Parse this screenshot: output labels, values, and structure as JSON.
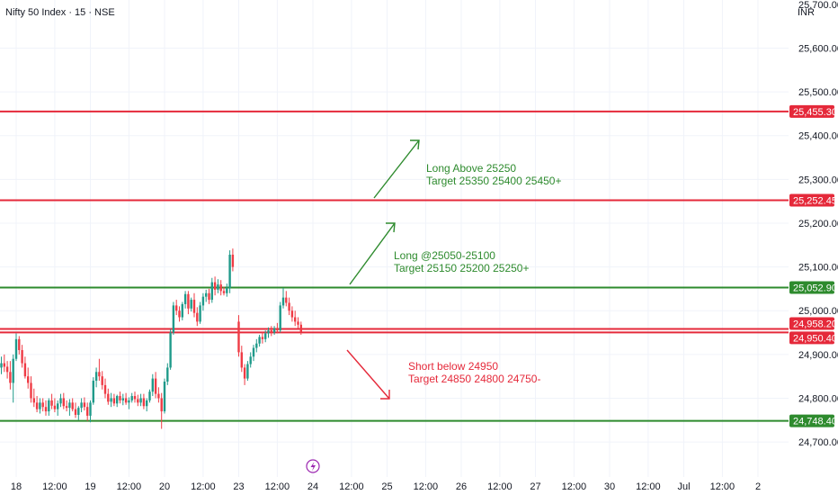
{
  "header": {
    "title": "Nifty 50 Index · 15 · NSE",
    "currency": "INR"
  },
  "colors": {
    "up": "#1f9a8a",
    "down": "#ef3b45",
    "resistance": "#e5293a",
    "support": "#2e8b2e",
    "grid": "#f0f3fa",
    "event_icon": "#9c27b0"
  },
  "chart_data": {
    "type": "candlestick",
    "ylim": [
      24620,
      25710
    ],
    "y_ticks": [
      24700,
      24800,
      24900,
      25000,
      25100,
      25200,
      25300,
      25400,
      25500,
      25600
    ],
    "y_tick_labels": [
      "24,700.00",
      "24,800.00",
      "24,900.00",
      "25,000.00",
      "25,100.00",
      "25,200.00",
      "25,300.00",
      "25,400.00",
      "25,500.00",
      "25,600.00"
    ],
    "top_partial_label": "25,700.00",
    "x_labels": [
      {
        "label": "18",
        "slot": 0
      },
      {
        "label": "12:00",
        "slot": 13
      },
      {
        "label": "19",
        "slot": 25
      },
      {
        "label": "12:00",
        "slot": 38
      },
      {
        "label": "20",
        "slot": 50
      },
      {
        "label": "12:00",
        "slot": 63
      },
      {
        "label": "23",
        "slot": 75
      },
      {
        "label": "12:00",
        "slot": 88
      },
      {
        "label": "24",
        "slot": 100
      },
      {
        "label": "12:00",
        "slot": 113
      },
      {
        "label": "25",
        "slot": 125
      },
      {
        "label": "12:00",
        "slot": 138
      },
      {
        "label": "26",
        "slot": 150
      },
      {
        "label": "12:00",
        "slot": 163
      },
      {
        "label": "27",
        "slot": 175
      },
      {
        "label": "12:00",
        "slot": 188
      },
      {
        "label": "30",
        "slot": 200
      },
      {
        "label": "12:00",
        "slot": 213
      },
      {
        "label": "Jul",
        "slot": 225
      },
      {
        "label": "12:00",
        "slot": 238
      },
      {
        "label": "2",
        "slot": 250
      }
    ],
    "levels": [
      {
        "value": 25455.3,
        "label": "25,455.30",
        "kind": "resistance"
      },
      {
        "value": 25252.45,
        "label": "25,252.45",
        "kind": "resistance"
      },
      {
        "value": 25052.9,
        "label": "25,052.90",
        "kind": "support"
      },
      {
        "value": 24958.2,
        "label": "24,958.20",
        "kind": "resistance"
      },
      {
        "value": 24950.4,
        "label": "24,950.40",
        "kind": "resistance"
      },
      {
        "value": 24748.4,
        "label": "24,748.40",
        "kind": "support"
      }
    ],
    "annotations": [
      {
        "lines": [
          "Long Above 25250",
          "Target 25350 25400 25450+"
        ],
        "kind": "green"
      },
      {
        "lines": [
          "Long @25050-25100",
          "Target 25150 25200 25250+"
        ],
        "kind": "green"
      },
      {
        "lines": [
          "Short below 24950",
          "Target 24850 24800 24750-"
        ],
        "kind": "red"
      }
    ],
    "candles": [
      {
        "slot": -5,
        "o": 24870,
        "h": 24895,
        "l": 24855,
        "c": 24880
      },
      {
        "slot": -4,
        "o": 24880,
        "h": 24900,
        "l": 24860,
        "c": 24872
      },
      {
        "slot": -3,
        "o": 24872,
        "h": 24885,
        "l": 24845,
        "c": 24860
      },
      {
        "slot": -2,
        "o": 24860,
        "h": 24885,
        "l": 24820,
        "c": 24835
      },
      {
        "slot": -1,
        "o": 24835,
        "h": 24900,
        "l": 24790,
        "c": 24890
      },
      {
        "slot": 0,
        "o": 24890,
        "h": 24948,
        "l": 24885,
        "c": 24935
      },
      {
        "slot": 1,
        "o": 24935,
        "h": 24942,
        "l": 24900,
        "c": 24910
      },
      {
        "slot": 2,
        "o": 24910,
        "h": 24922,
        "l": 24870,
        "c": 24880
      },
      {
        "slot": 3,
        "o": 24880,
        "h": 24895,
        "l": 24845,
        "c": 24850
      },
      {
        "slot": 4,
        "o": 24850,
        "h": 24870,
        "l": 24822,
        "c": 24835
      },
      {
        "slot": 5,
        "o": 24835,
        "h": 24850,
        "l": 24790,
        "c": 24800
      },
      {
        "slot": 6,
        "o": 24800,
        "h": 24822,
        "l": 24780,
        "c": 24790
      },
      {
        "slot": 7,
        "o": 24790,
        "h": 24805,
        "l": 24768,
        "c": 24775
      },
      {
        "slot": 8,
        "o": 24775,
        "h": 24800,
        "l": 24765,
        "c": 24790
      },
      {
        "slot": 9,
        "o": 24790,
        "h": 24800,
        "l": 24770,
        "c": 24780
      },
      {
        "slot": 10,
        "o": 24780,
        "h": 24795,
        "l": 24760,
        "c": 24770
      },
      {
        "slot": 11,
        "o": 24770,
        "h": 24800,
        "l": 24760,
        "c": 24795
      },
      {
        "slot": 12,
        "o": 24795,
        "h": 24810,
        "l": 24775,
        "c": 24783
      },
      {
        "slot": 13,
        "o": 24783,
        "h": 24800,
        "l": 24768,
        "c": 24775
      },
      {
        "slot": 14,
        "o": 24775,
        "h": 24795,
        "l": 24760,
        "c": 24788
      },
      {
        "slot": 15,
        "o": 24788,
        "h": 24810,
        "l": 24780,
        "c": 24800
      },
      {
        "slot": 16,
        "o": 24800,
        "h": 24812,
        "l": 24775,
        "c": 24782
      },
      {
        "slot": 17,
        "o": 24782,
        "h": 24795,
        "l": 24770,
        "c": 24778
      },
      {
        "slot": 18,
        "o": 24778,
        "h": 24798,
        "l": 24760,
        "c": 24790
      },
      {
        "slot": 19,
        "o": 24790,
        "h": 24800,
        "l": 24770,
        "c": 24775
      },
      {
        "slot": 20,
        "o": 24775,
        "h": 24790,
        "l": 24755,
        "c": 24762
      },
      {
        "slot": 21,
        "o": 24762,
        "h": 24782,
        "l": 24750,
        "c": 24778
      },
      {
        "slot": 22,
        "o": 24778,
        "h": 24800,
        "l": 24768,
        "c": 24790
      },
      {
        "slot": 23,
        "o": 24790,
        "h": 24802,
        "l": 24772,
        "c": 24780
      },
      {
        "slot": 24,
        "o": 24780,
        "h": 24790,
        "l": 24748,
        "c": 24760
      },
      {
        "slot": 25,
        "o": 24760,
        "h": 24795,
        "l": 24745,
        "c": 24790
      },
      {
        "slot": 26,
        "o": 24790,
        "h": 24848,
        "l": 24785,
        "c": 24840
      },
      {
        "slot": 27,
        "o": 24840,
        "h": 24870,
        "l": 24825,
        "c": 24860
      },
      {
        "slot": 28,
        "o": 24860,
        "h": 24890,
        "l": 24840,
        "c": 24850
      },
      {
        "slot": 29,
        "o": 24850,
        "h": 24862,
        "l": 24820,
        "c": 24830
      },
      {
        "slot": 30,
        "o": 24830,
        "h": 24845,
        "l": 24800,
        "c": 24810
      },
      {
        "slot": 31,
        "o": 24810,
        "h": 24822,
        "l": 24785,
        "c": 24792
      },
      {
        "slot": 32,
        "o": 24792,
        "h": 24812,
        "l": 24780,
        "c": 24800
      },
      {
        "slot": 33,
        "o": 24800,
        "h": 24810,
        "l": 24782,
        "c": 24788
      },
      {
        "slot": 34,
        "o": 24788,
        "h": 24808,
        "l": 24780,
        "c": 24805
      },
      {
        "slot": 35,
        "o": 24805,
        "h": 24815,
        "l": 24788,
        "c": 24795
      },
      {
        "slot": 36,
        "o": 24795,
        "h": 24810,
        "l": 24784,
        "c": 24800
      },
      {
        "slot": 37,
        "o": 24800,
        "h": 24812,
        "l": 24785,
        "c": 24790
      },
      {
        "slot": 38,
        "o": 24790,
        "h": 24802,
        "l": 24775,
        "c": 24795
      },
      {
        "slot": 39,
        "o": 24795,
        "h": 24812,
        "l": 24790,
        "c": 24805
      },
      {
        "slot": 40,
        "o": 24805,
        "h": 24815,
        "l": 24790,
        "c": 24798
      },
      {
        "slot": 41,
        "o": 24798,
        "h": 24808,
        "l": 24782,
        "c": 24790
      },
      {
        "slot": 42,
        "o": 24790,
        "h": 24810,
        "l": 24782,
        "c": 24800
      },
      {
        "slot": 43,
        "o": 24800,
        "h": 24810,
        "l": 24775,
        "c": 24782
      },
      {
        "slot": 44,
        "o": 24782,
        "h": 24800,
        "l": 24770,
        "c": 24795
      },
      {
        "slot": 45,
        "o": 24795,
        "h": 24820,
        "l": 24790,
        "c": 24815
      },
      {
        "slot": 46,
        "o": 24815,
        "h": 24855,
        "l": 24805,
        "c": 24845
      },
      {
        "slot": 47,
        "o": 24845,
        "h": 24860,
        "l": 24800,
        "c": 24810
      },
      {
        "slot": 48,
        "o": 24810,
        "h": 24825,
        "l": 24790,
        "c": 24800
      },
      {
        "slot": 49,
        "o": 24800,
        "h": 24812,
        "l": 24730,
        "c": 24770
      },
      {
        "slot": 50,
        "o": 24770,
        "h": 24845,
        "l": 24765,
        "c": 24838
      },
      {
        "slot": 51,
        "o": 24838,
        "h": 24880,
        "l": 24830,
        "c": 24870
      },
      {
        "slot": 52,
        "o": 24870,
        "h": 24958,
        "l": 24865,
        "c": 24950
      },
      {
        "slot": 53,
        "o": 24950,
        "h": 25020,
        "l": 24945,
        "c": 25012
      },
      {
        "slot": 54,
        "o": 25012,
        "h": 25025,
        "l": 24990,
        "c": 25000
      },
      {
        "slot": 55,
        "o": 25000,
        "h": 25010,
        "l": 24975,
        "c": 24985
      },
      {
        "slot": 56,
        "o": 24985,
        "h": 25020,
        "l": 24978,
        "c": 25015
      },
      {
        "slot": 57,
        "o": 25015,
        "h": 25045,
        "l": 25005,
        "c": 25038
      },
      {
        "slot": 58,
        "o": 25038,
        "h": 25045,
        "l": 24992,
        "c": 25005
      },
      {
        "slot": 59,
        "o": 25005,
        "h": 25030,
        "l": 24998,
        "c": 25025
      },
      {
        "slot": 60,
        "o": 25025,
        "h": 25040,
        "l": 24985,
        "c": 24995
      },
      {
        "slot": 61,
        "o": 24995,
        "h": 25008,
        "l": 24965,
        "c": 24975
      },
      {
        "slot": 62,
        "o": 24975,
        "h": 25020,
        "l": 24970,
        "c": 25012
      },
      {
        "slot": 63,
        "o": 25012,
        "h": 25040,
        "l": 25000,
        "c": 25032
      },
      {
        "slot": 64,
        "o": 25032,
        "h": 25048,
        "l": 25020,
        "c": 25040
      },
      {
        "slot": 65,
        "o": 25040,
        "h": 25050,
        "l": 25015,
        "c": 25025
      },
      {
        "slot": 66,
        "o": 25025,
        "h": 25075,
        "l": 25018,
        "c": 25065
      },
      {
        "slot": 67,
        "o": 25065,
        "h": 25078,
        "l": 25035,
        "c": 25048
      },
      {
        "slot": 68,
        "o": 25048,
        "h": 25072,
        "l": 25040,
        "c": 25060
      },
      {
        "slot": 69,
        "o": 25060,
        "h": 25070,
        "l": 25035,
        "c": 25045
      },
      {
        "slot": 70,
        "o": 25045,
        "h": 25055,
        "l": 25035,
        "c": 25040
      },
      {
        "slot": 71,
        "o": 25040,
        "h": 25062,
        "l": 25032,
        "c": 25052
      },
      {
        "slot": 72,
        "o": 25052,
        "h": 25138,
        "l": 25040,
        "c": 25128
      },
      {
        "slot": 73,
        "o": 25128,
        "h": 25142,
        "l": 25090,
        "c": 25100
      },
      {
        "slot": 75,
        "o": 24975,
        "h": 24990,
        "l": 24895,
        "c": 24905
      },
      {
        "slot": 76,
        "o": 24905,
        "h": 24920,
        "l": 24860,
        "c": 24870
      },
      {
        "slot": 77,
        "o": 24870,
        "h": 24878,
        "l": 24830,
        "c": 24845
      },
      {
        "slot": 78,
        "o": 24845,
        "h": 24885,
        "l": 24840,
        "c": 24878
      },
      {
        "slot": 79,
        "o": 24878,
        "h": 24905,
        "l": 24870,
        "c": 24895
      },
      {
        "slot": 80,
        "o": 24895,
        "h": 24922,
        "l": 24885,
        "c": 24915
      },
      {
        "slot": 81,
        "o": 24915,
        "h": 24935,
        "l": 24905,
        "c": 24925
      },
      {
        "slot": 82,
        "o": 24925,
        "h": 24945,
        "l": 24918,
        "c": 24940
      },
      {
        "slot": 83,
        "o": 24940,
        "h": 24952,
        "l": 24925,
        "c": 24935
      },
      {
        "slot": 84,
        "o": 24935,
        "h": 24955,
        "l": 24928,
        "c": 24948
      },
      {
        "slot": 85,
        "o": 24948,
        "h": 24962,
        "l": 24938,
        "c": 24955
      },
      {
        "slot": 86,
        "o": 24955,
        "h": 24965,
        "l": 24942,
        "c": 24950
      },
      {
        "slot": 87,
        "o": 24950,
        "h": 24965,
        "l": 24945,
        "c": 24960
      },
      {
        "slot": 88,
        "o": 24960,
        "h": 24972,
        "l": 24948,
        "c": 24955
      },
      {
        "slot": 89,
        "o": 24955,
        "h": 25020,
        "l": 24950,
        "c": 25012
      },
      {
        "slot": 90,
        "o": 25012,
        "h": 25052,
        "l": 25005,
        "c": 25030
      },
      {
        "slot": 91,
        "o": 25030,
        "h": 25045,
        "l": 25010,
        "c": 25018
      },
      {
        "slot": 92,
        "o": 25018,
        "h": 25030,
        "l": 24990,
        "c": 25000
      },
      {
        "slot": 93,
        "o": 25000,
        "h": 25010,
        "l": 24975,
        "c": 24985
      },
      {
        "slot": 94,
        "o": 24985,
        "h": 25000,
        "l": 24965,
        "c": 24975
      },
      {
        "slot": 95,
        "o": 24975,
        "h": 24985,
        "l": 24960,
        "c": 24968
      },
      {
        "slot": 96,
        "o": 24968,
        "h": 24975,
        "l": 24945,
        "c": 24952
      }
    ]
  }
}
